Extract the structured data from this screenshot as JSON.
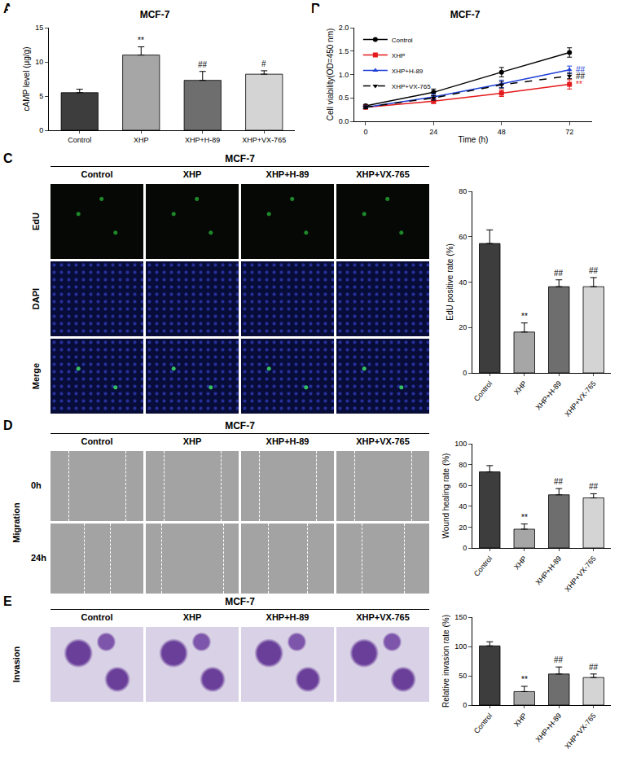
{
  "panel_labels": [
    "A",
    "B",
    "C",
    "D",
    "E"
  ],
  "chart_data": [
    {
      "type": "bar",
      "title": "MCF-7",
      "y_label": "cAMP level (μg/g)",
      "categories": [
        "Control",
        "XHP",
        "XHP+H-89",
        "XHP+VX-765"
      ],
      "values": [
        5.5,
        11.0,
        7.3,
        8.2
      ],
      "errors": [
        0.5,
        1.2,
        1.3,
        0.5
      ],
      "annotations": [
        null,
        "**",
        "##",
        "#"
      ],
      "colors": [
        "#3d3d3d",
        "#a6a6a6",
        "#6e6e6e",
        "#d4d4d4"
      ],
      "ylim": [
        0,
        15
      ],
      "yticks": [
        0,
        5,
        10,
        15
      ],
      "grid": false
    },
    {
      "type": "line",
      "title": "MCF-7",
      "x_label": "Time (h)",
      "y_label": "Cell viability(OD=450 nm)",
      "x": [
        0,
        24,
        48,
        72
      ],
      "xlim": [
        -4,
        80
      ],
      "xticks": [
        0,
        24,
        48,
        72
      ],
      "ylim": [
        0,
        2
      ],
      "yticks": [
        {
          "value": 0,
          "label": "0.0"
        },
        {
          "value": 0.5,
          "label": "0.5"
        },
        {
          "value": 1,
          "label": "1.0"
        },
        {
          "value": 1.5,
          "label": "1.5"
        },
        {
          "value": 2,
          "label": "2.0"
        }
      ],
      "grid": false,
      "legend": "top left",
      "series": [
        {
          "name": "Control",
          "color": "#000000",
          "marker": "circle",
          "line_style": "solid",
          "values": [
            0.33,
            0.62,
            1.05,
            1.47
          ],
          "errors": [
            0.03,
            0.07,
            0.1,
            0.1
          ]
        },
        {
          "name": "XHP",
          "color": "#e41a1c",
          "marker": "square",
          "line_style": "solid",
          "values": [
            0.3,
            0.43,
            0.6,
            0.79
          ],
          "errors": [
            0.03,
            0.05,
            0.07,
            0.1
          ],
          "annotation": "**"
        },
        {
          "name": "XHP+H-89",
          "color": "#1f3fd6",
          "marker": "triangle-up",
          "line_style": "solid",
          "values": [
            0.3,
            0.52,
            0.8,
            1.1
          ],
          "errors": [
            0.03,
            0.06,
            0.08,
            0.08
          ],
          "annotation": "##"
        },
        {
          "name": "XHP+VX-765",
          "color": "#000000",
          "marker": "triangle-down",
          "line_style": "dash",
          "values": [
            0.3,
            0.5,
            0.78,
            0.97
          ],
          "errors": [
            0.03,
            0.05,
            0.07,
            0.06
          ],
          "annotation": "##"
        }
      ]
    },
    {
      "type": "bar",
      "y_label": "EdU positive rate (%)",
      "categories": [
        "Control",
        "XHP",
        "XHP+H-89",
        "XHP+VX-765"
      ],
      "values": [
        57,
        18,
        38,
        38
      ],
      "errors": [
        6,
        4,
        3,
        4
      ],
      "annotations": [
        null,
        "**",
        "##",
        "##"
      ],
      "colors": [
        "#3d3d3d",
        "#a6a6a6",
        "#6e6e6e",
        "#d4d4d4"
      ],
      "ylim": [
        0,
        80
      ],
      "yticks": [
        0,
        20,
        40,
        60,
        80
      ],
      "grid": false
    },
    {
      "type": "bar",
      "y_label": "Wound healing rate (%)",
      "categories": [
        "Control",
        "XHP",
        "XHP+H-89",
        "XHP+VX-765"
      ],
      "values": [
        73,
        18,
        51,
        48
      ],
      "errors": [
        6,
        5,
        6,
        4
      ],
      "annotations": [
        null,
        "**",
        "##",
        "##"
      ],
      "colors": [
        "#3d3d3d",
        "#a6a6a6",
        "#6e6e6e",
        "#d4d4d4"
      ],
      "ylim": [
        0,
        100
      ],
      "yticks": [
        0,
        20,
        40,
        60,
        80,
        100
      ],
      "grid": false
    },
    {
      "type": "bar",
      "y_label": "Relative invasion rate (%)",
      "categories": [
        "Control",
        "XHP",
        "XHP+H-89",
        "XHP+VX-765"
      ],
      "values": [
        101,
        23,
        53,
        47
      ],
      "errors": [
        7,
        9,
        12,
        6
      ],
      "annotations": [
        null,
        "**",
        "##",
        "##"
      ],
      "colors": [
        "#3d3d3d",
        "#a6a6a6",
        "#6e6e6e",
        "#d4d4d4"
      ],
      "ylim": [
        0,
        150
      ],
      "yticks": [
        0,
        50,
        100,
        150
      ],
      "grid": false
    }
  ],
  "image_panels": [
    {
      "title": "MCF-7",
      "columns": [
        "Control",
        "XHP",
        "XHP+H-89",
        "XHP+VX-765"
      ],
      "rows": [
        "EdU",
        "DAPI",
        "Merge"
      ]
    },
    {
      "title": "MCF-7",
      "columns": [
        "Control",
        "XHP",
        "XHP+H-89",
        "XHP+VX-765"
      ],
      "rows": [
        "0h",
        "24h"
      ],
      "side_label": "Migration"
    },
    {
      "title": "MCF-7",
      "columns": [
        "Control",
        "XHP",
        "XHP+H-89",
        "XHP+VX-765"
      ],
      "side_label": "Invasion"
    }
  ]
}
